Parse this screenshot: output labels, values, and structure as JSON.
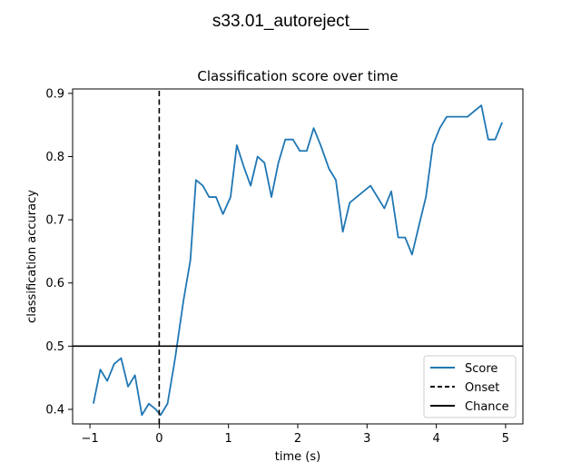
{
  "figure_title": "s33.01_autoreject__",
  "chart_data": {
    "type": "line",
    "title": "Classification score over time",
    "xlabel": "time (s)",
    "ylabel": "classification accuracy",
    "xlim": [
      -1.25,
      5.25
    ],
    "ylim": [
      0.377,
      0.907
    ],
    "xticks": [
      -1,
      0,
      1,
      2,
      3,
      4,
      5
    ],
    "xtick_labels": [
      "−1",
      "0",
      "1",
      "2",
      "3",
      "4",
      "5"
    ],
    "yticks": [
      0.4,
      0.5,
      0.6,
      0.7,
      0.8,
      0.9
    ],
    "ytick_labels": [
      "0.4",
      "0.5",
      "0.6",
      "0.7",
      "0.8",
      "0.9"
    ],
    "grid": false,
    "legend_position": "lower-right",
    "series": [
      {
        "name": "Score",
        "color": "#1f77b4",
        "style": "solid",
        "x": [
          -0.95,
          -0.85,
          -0.75,
          -0.65,
          -0.55,
          -0.45,
          -0.35,
          -0.25,
          -0.15,
          -0.05,
          0.02,
          0.12,
          0.23,
          0.35,
          0.45,
          0.53,
          0.63,
          0.72,
          0.82,
          0.92,
          1.03,
          1.12,
          1.23,
          1.32,
          1.42,
          1.52,
          1.62,
          1.72,
          1.82,
          1.93,
          2.03,
          2.13,
          2.23,
          2.33,
          2.45,
          2.55,
          2.65,
          2.75,
          3.05,
          3.25,
          3.35,
          3.45,
          3.55,
          3.65,
          3.75,
          3.85,
          3.95,
          4.05,
          4.15,
          4.45,
          4.65,
          4.75,
          4.85,
          4.95
        ],
        "y": [
          0.409,
          0.463,
          0.445,
          0.472,
          0.481,
          0.436,
          0.454,
          0.391,
          0.409,
          0.4,
          0.391,
          0.409,
          0.481,
          0.572,
          0.636,
          0.763,
          0.754,
          0.736,
          0.736,
          0.709,
          0.736,
          0.818,
          0.781,
          0.754,
          0.8,
          0.79,
          0.736,
          0.79,
          0.827,
          0.827,
          0.809,
          0.809,
          0.845,
          0.818,
          0.781,
          0.763,
          0.681,
          0.727,
          0.754,
          0.718,
          0.745,
          0.672,
          0.672,
          0.645,
          0.691,
          0.736,
          0.818,
          0.845,
          0.863,
          0.863,
          0.881,
          0.827,
          0.827,
          0.854
        ]
      },
      {
        "name": "Onset",
        "color": "#000000",
        "style": "dashed",
        "x": [
          0,
          0
        ],
        "y": [
          0.377,
          0.907
        ]
      },
      {
        "name": "Chance",
        "color": "#000000",
        "style": "solid",
        "x": [
          -1.25,
          5.25
        ],
        "y": [
          0.5,
          0.5
        ]
      }
    ]
  }
}
